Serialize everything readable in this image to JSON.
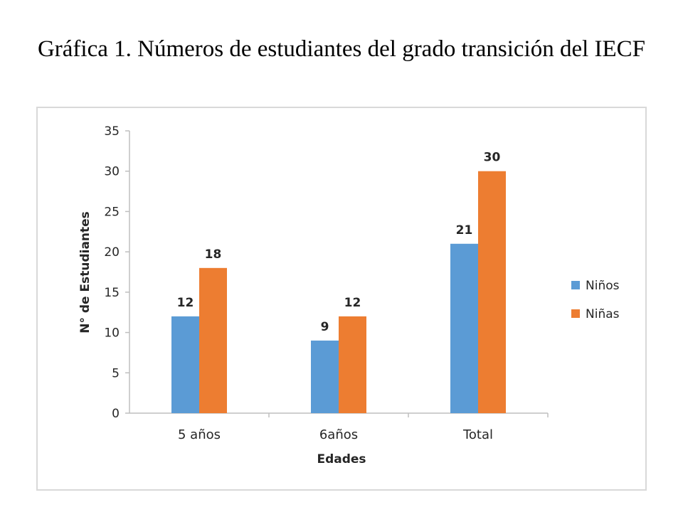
{
  "page": {
    "title": "Gráfica 1. Números de estudiantes del grado transición del IECF"
  },
  "chart_data": {
    "type": "bar",
    "categories": [
      "5 años",
      "6años",
      "Total"
    ],
    "series": [
      {
        "name": "Niños",
        "values": [
          12,
          9,
          21
        ],
        "color": "#5b9bd5"
      },
      {
        "name": "Niñas",
        "values": [
          18,
          12,
          30
        ],
        "color": "#ed7d31"
      }
    ],
    "xlabel": "Edades",
    "ylabel": "N° de Estudiantes",
    "ylim": [
      0,
      35
    ],
    "yticks": [
      0,
      5,
      10,
      15,
      20,
      25,
      30,
      35
    ],
    "grid": false,
    "legend_position": "right",
    "data_labels": true
  }
}
